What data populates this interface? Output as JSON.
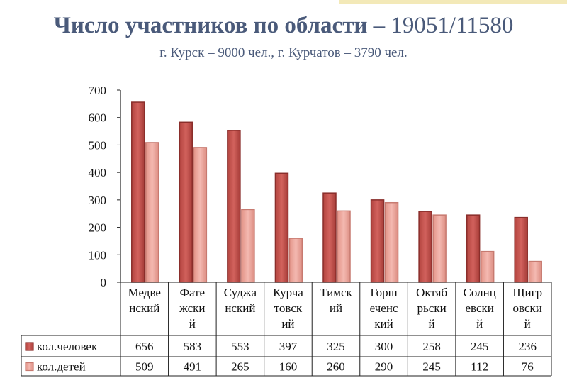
{
  "header": {
    "title_bold": "Число участников по области",
    "title_rest": " – 19051/11580",
    "subtitle": "г. Курск – 9000 чел., г. Курчатов – 3790 чел."
  },
  "colors": {
    "accent": "#f3e9b8",
    "title": "#4a5a7a",
    "series1": "#c0504d",
    "series2": "#e9a39b"
  },
  "chart_data": {
    "type": "bar",
    "categories": [
      [
        "Медве",
        "нский"
      ],
      [
        "Фате",
        "жски",
        "й"
      ],
      [
        "Суджа",
        "нский"
      ],
      [
        "Курча",
        "товск",
        "ий"
      ],
      [
        "Тимск",
        "ий"
      ],
      [
        "Горш",
        "еченс",
        "кий"
      ],
      [
        "Октяб",
        "рьски",
        "й"
      ],
      [
        "Солнц",
        "евски",
        "й"
      ],
      [
        "Щигр",
        "овски",
        "й"
      ]
    ],
    "series": [
      {
        "name": "кол.человек",
        "values": [
          656,
          583,
          553,
          397,
          325,
          300,
          258,
          245,
          236
        ]
      },
      {
        "name": "кол.детей",
        "values": [
          509,
          491,
          265,
          160,
          260,
          290,
          245,
          112,
          76
        ]
      }
    ],
    "ylim": [
      0,
      700
    ],
    "yticks": [
      0,
      100,
      200,
      300,
      400,
      500,
      600,
      700
    ],
    "legend": "table-left",
    "grid": false
  }
}
